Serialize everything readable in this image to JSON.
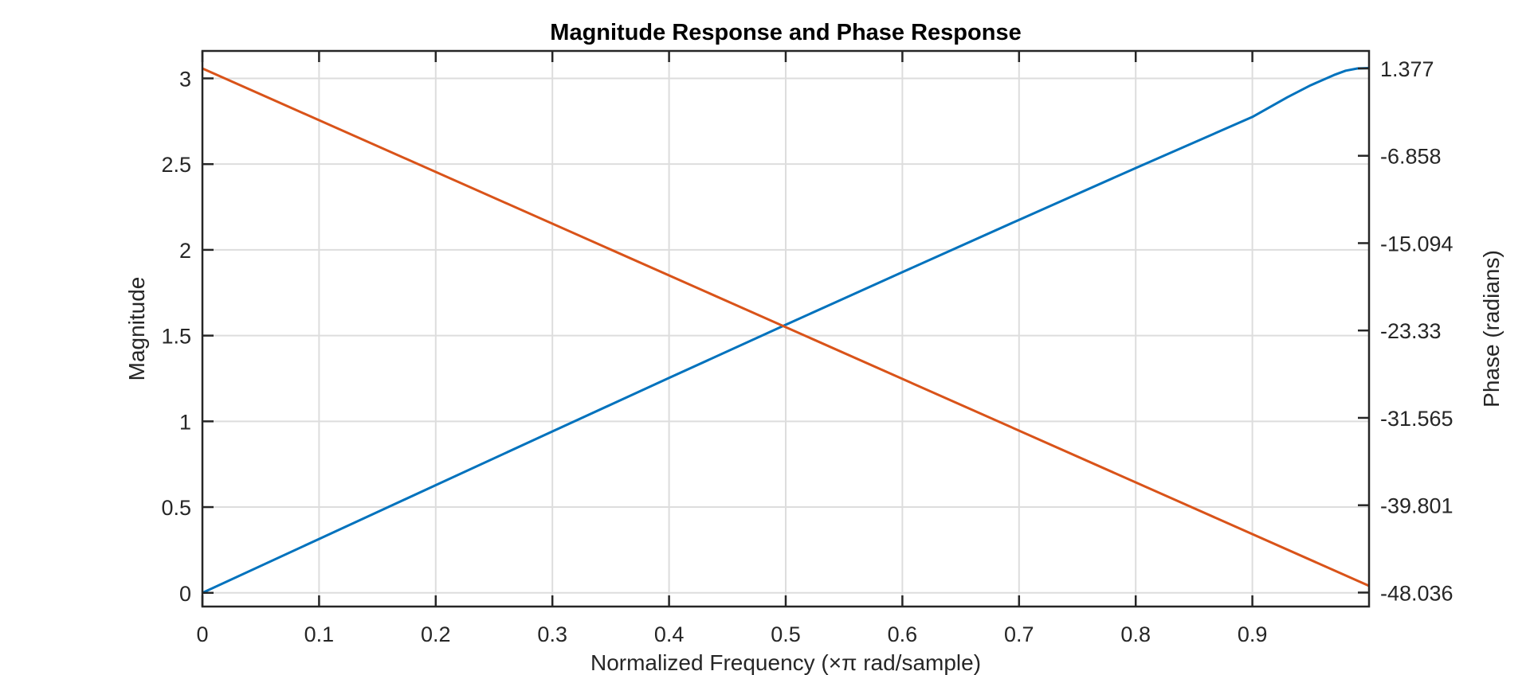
{
  "chart_data": {
    "type": "line",
    "title": "Magnitude Response and Phase Response",
    "xlabel": "Normalized Frequency (×π rad/sample)",
    "ylabel_left": "Magnitude",
    "ylabel_right": "Phase (radians)",
    "xlim": [
      0,
      1
    ],
    "ylim_left": [
      -0.08,
      3.16
    ],
    "ylim_right": [
      -49.3536,
      3.0242
    ],
    "x_ticks": [
      0,
      0.1,
      0.2,
      0.3,
      0.4,
      0.5,
      0.6,
      0.7,
      0.8,
      0.9
    ],
    "x_tick_labels": [
      "0",
      "0.1",
      "0.2",
      "0.3",
      "0.4",
      "0.5",
      "0.6",
      "0.7",
      "0.8",
      "0.9"
    ],
    "y_left_ticks": [
      0,
      0.5,
      1,
      1.5,
      2,
      2.5,
      3
    ],
    "y_left_tick_labels": [
      "0",
      "0.5",
      "1",
      "1.5",
      "2",
      "2.5",
      "3"
    ],
    "y_right_ticks": [
      -48.036,
      -39.801,
      -31.565,
      -23.33,
      -15.094,
      -6.858,
      1.377
    ],
    "y_right_tick_labels": [
      "-48.036",
      "-39.801",
      "-31.565",
      "-23.33",
      "-15.094",
      "-6.858",
      "1.377"
    ],
    "grid": true,
    "colors": {
      "magnitude": "#0072BD",
      "phase": "#D95319",
      "grid": "#DDDDDD",
      "axis": "#262626"
    },
    "series": [
      {
        "axis": "left",
        "x": [
          0,
          0.1,
          0.2,
          0.3,
          0.4,
          0.5,
          0.6,
          0.7,
          0.8,
          0.9,
          0.93,
          0.95,
          0.97,
          0.98,
          0.99,
          1.0
        ],
        "values": [
          0,
          0.314,
          0.628,
          0.941,
          1.253,
          1.563,
          1.87,
          2.175,
          2.477,
          2.775,
          2.89,
          2.96,
          3.02,
          3.045,
          3.058,
          3.06
        ]
      },
      {
        "axis": "right",
        "x": [
          0,
          1.0
        ],
        "values": [
          1.377,
          -47.4
        ]
      }
    ]
  }
}
